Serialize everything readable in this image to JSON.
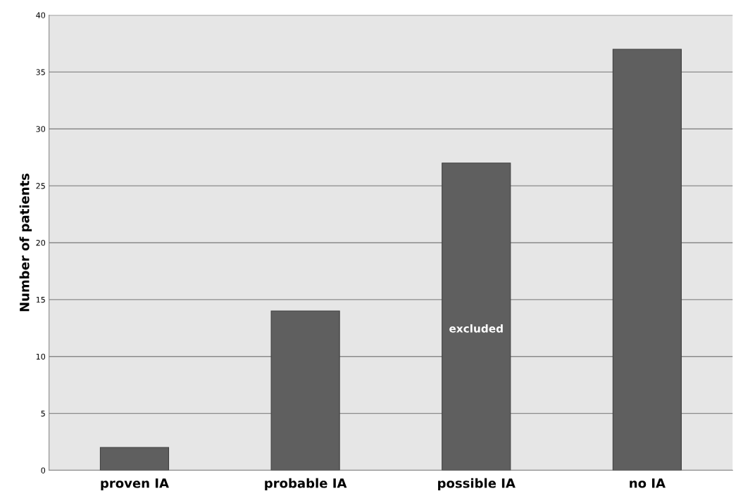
{
  "chart_data": {
    "type": "bar",
    "ylabel": "Number of patients",
    "categories": [
      "proven IA",
      "probable IA",
      "possible IA",
      "no IA"
    ],
    "values": [
      2,
      14,
      27,
      37
    ],
    "color": "#5f5f5f",
    "ylim": [
      0,
      40
    ],
    "yticks": [
      0,
      5,
      10,
      15,
      20,
      25,
      30,
      35,
      40
    ],
    "grid": "y",
    "annotations": [
      "excluded"
    ]
  }
}
